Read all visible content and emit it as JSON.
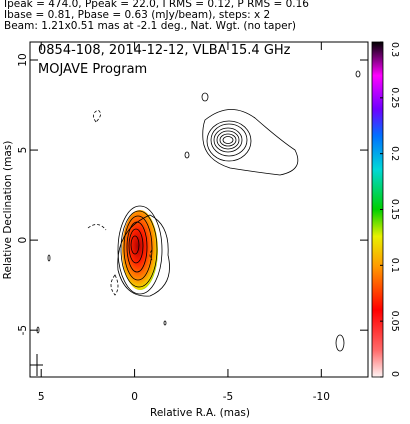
{
  "header": [
    "Ipeak = 474.0, Ppeak = 22.0, I RMS = 0.12, P RMS = 0.16",
    "Ibase = 0.81, Pbase = 0.63 (mJy/beam), steps: x 2",
    "Beam: 1.21x0.51 mas at -2.1 deg., Nat. Wgt. (no taper)"
  ],
  "chart_data": {
    "type": "contour",
    "annotations": [
      "0854-108, 2014-12-12, VLBA 15.4 GHz",
      "MOJAVE Program"
    ],
    "xlabel": "Relative R.A. (mas)",
    "ylabel": "Relative Declination (mas)",
    "xlim": [
      5.6,
      -12.5
    ],
    "xticks": [
      5,
      0,
      -5,
      -10
    ],
    "ylim": [
      -7.6,
      11
    ],
    "yticks": [
      -5,
      0,
      5,
      10
    ],
    "colorbar": {
      "lim": [
        0,
        0.3
      ],
      "ticks": [
        0,
        0.05,
        0.1,
        0.15,
        0.2,
        0.25,
        0.3
      ]
    }
  }
}
